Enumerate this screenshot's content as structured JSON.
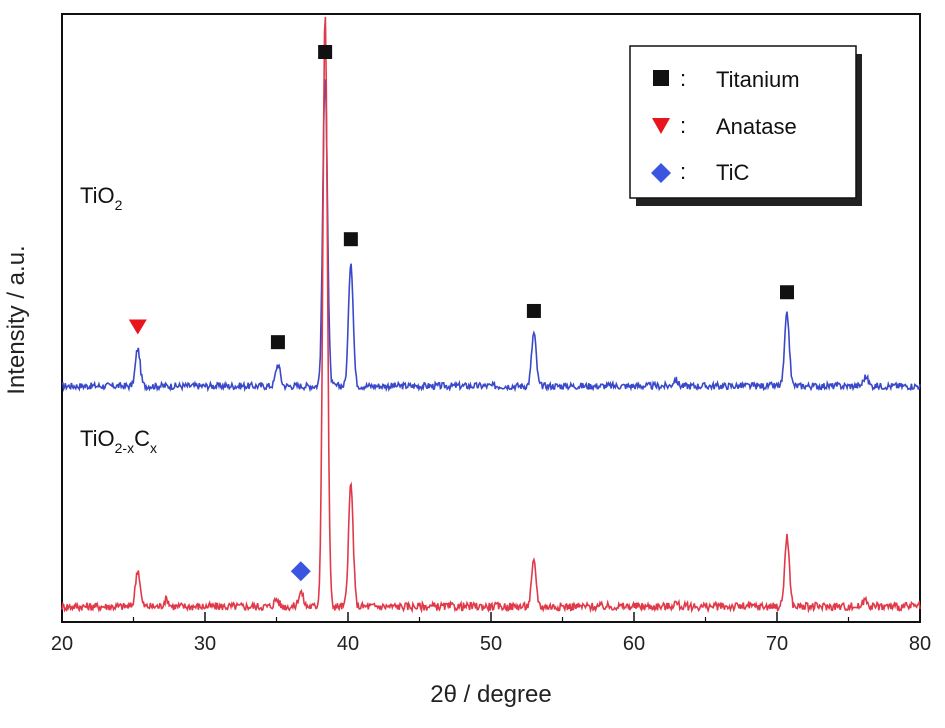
{
  "chart_data": {
    "type": "line",
    "xlabel": "2θ / degree",
    "ylabel": "Intensity / a.u.",
    "xlim": [
      20,
      80
    ],
    "xticks": [
      20,
      30,
      40,
      50,
      60,
      70,
      80
    ],
    "y_ticks_shown": false,
    "legend": {
      "placement": "top-right",
      "separator": ":",
      "entries": [
        {
          "name": "Titanium",
          "marker": "square",
          "color": "#111111"
        },
        {
          "name": "Anatase",
          "marker": "triangle-down",
          "color": "#e8141e"
        },
        {
          "name": "TiC",
          "marker": "diamond",
          "color": "#3a55e0"
        }
      ]
    },
    "series": [
      {
        "name": "TiO2",
        "label_main": "TiO",
        "label_sub": "2",
        "color": "#3a49c8",
        "peaks": [
          {
            "x": 25.3,
            "height": 0.12,
            "phase": "Anatase"
          },
          {
            "x": 35.1,
            "height": 0.07,
            "phase": "Titanium"
          },
          {
            "x": 38.4,
            "height": 1.0,
            "phase": "Titanium"
          },
          {
            "x": 40.2,
            "height": 0.4,
            "phase": "Titanium"
          },
          {
            "x": 53.0,
            "height": 0.17,
            "phase": "Titanium"
          },
          {
            "x": 62.9,
            "height": 0.02,
            "phase": ""
          },
          {
            "x": 70.7,
            "height": 0.23,
            "phase": "Titanium"
          },
          {
            "x": 76.2,
            "height": 0.03,
            "phase": ""
          }
        ]
      },
      {
        "name": "TiO2-xCx",
        "label_main": "TiO",
        "label_sub": "2-x",
        "label_main2": "C",
        "label_sub2": "x",
        "color": "#e03a4a",
        "peaks": [
          {
            "x": 25.3,
            "height": 0.1,
            "phase": ""
          },
          {
            "x": 27.3,
            "height": 0.02,
            "phase": ""
          },
          {
            "x": 35.0,
            "height": 0.02,
            "phase": ""
          },
          {
            "x": 36.7,
            "height": 0.04,
            "phase": "TiC"
          },
          {
            "x": 38.4,
            "height": 1.6,
            "phase": ""
          },
          {
            "x": 40.2,
            "height": 0.33,
            "phase": ""
          },
          {
            "x": 53.0,
            "height": 0.12,
            "phase": ""
          },
          {
            "x": 62.9,
            "height": 0.01,
            "phase": ""
          },
          {
            "x": 70.7,
            "height": 0.19,
            "phase": ""
          },
          {
            "x": 76.2,
            "height": 0.02,
            "phase": ""
          }
        ]
      }
    ]
  }
}
